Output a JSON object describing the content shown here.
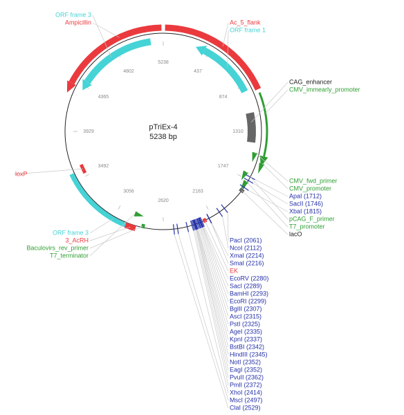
{
  "title": "pTriEx-4",
  "size": "5238 bp",
  "ticks": [
    "5238",
    "437",
    "874",
    "1310",
    "1747",
    "2183",
    "2620",
    "3056",
    "3492",
    "3929",
    "4365",
    "4802"
  ],
  "top_left": [
    "ORF frame 3",
    "Ampicillin"
  ],
  "top_right": [
    "Ac_5_flank",
    "ORF frame 1"
  ],
  "right": [
    "CAG_enhancer",
    "CMV_immearly_promoter"
  ],
  "left": [
    "loxP"
  ],
  "right_lower": [
    "CMV_fwd_primer",
    "CMV_promoter",
    "ApaI (1712)",
    "SacII (1746)",
    "XbaI (1815)",
    "pCAG_F_primer",
    "T7_promoter",
    "lacO"
  ],
  "bottom_left": [
    "ORF frame 3",
    "3_AcRH",
    "Baculovirs_rev_primer",
    "T7_terminator"
  ],
  "bottom": [
    "PacI (2061)",
    "NcoI (2112)",
    "XmaI (2214)",
    "SmaI (2216)",
    "EK",
    "EcoRV (2280)",
    "SacI (2289)",
    "BamHI (2293)",
    "EcoRI (2299)",
    "BglII (2307)",
    "AscI (2315)",
    "PstI (2325)",
    "AgeI (2335)",
    "KpnI (2337)",
    "BstBI (2342)",
    "HindIII (2345)",
    "NotI (2352)",
    "EagI (2352)",
    "PvuII (2362)",
    "PmlI (2372)",
    "XhoI (2414)",
    "MscI (2497)",
    "ClaI (2529)"
  ]
}
